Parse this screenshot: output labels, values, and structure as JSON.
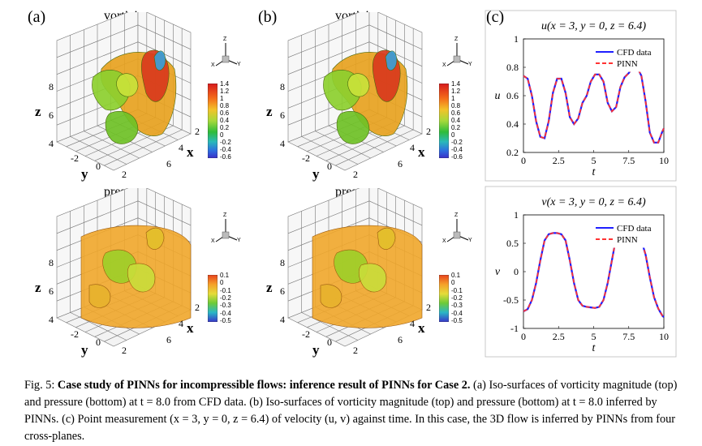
{
  "panels": {
    "a_label": "(a)",
    "b_label": "(b)",
    "c_label": "(c)",
    "vorticity_title": "vorticity",
    "pressure_title": "pressure"
  },
  "axes3d": {
    "z_label": "z",
    "y_label": "y",
    "x_label": "x",
    "z_ticks": [
      "8",
      "6",
      "4"
    ],
    "y_ticks": [
      "-2",
      "0",
      "2"
    ],
    "x_ticks": [
      "2",
      "4",
      "6"
    ]
  },
  "triad": {
    "z": "Z",
    "x": "X",
    "y": "Y"
  },
  "colorbars": {
    "vorticity_ticks": [
      "1.4",
      "1.2",
      "1",
      "0.8",
      "0.6",
      "0.4",
      "0.2",
      "0",
      "-0.2",
      "-0.4",
      "-0.6"
    ],
    "pressure_ticks": [
      "0.1",
      "0",
      "-0.1",
      "-0.2",
      "-0.3",
      "-0.4",
      "-0.5"
    ]
  },
  "chart_data": [
    {
      "type": "line",
      "title": "u(x = 3, y = 0, z = 6.4)",
      "xlabel": "t",
      "ylabel": "u",
      "xlim": [
        0,
        10
      ],
      "ylim": [
        0.2,
        1.0
      ],
      "xticks": [
        "0",
        "2.5",
        "5",
        "7.5",
        "10"
      ],
      "yticks": [
        "0.2",
        "0.4",
        "0.6",
        "0.8",
        "1"
      ],
      "legend": "top-right",
      "x": [
        0,
        0.3,
        0.6,
        0.9,
        1.2,
        1.5,
        1.8,
        2.1,
        2.4,
        2.7,
        3.0,
        3.3,
        3.6,
        3.9,
        4.2,
        4.5,
        4.8,
        5.1,
        5.4,
        5.7,
        6.0,
        6.3,
        6.6,
        6.9,
        7.2,
        7.5,
        7.8,
        8.1,
        8.4,
        8.7,
        9.0,
        9.3,
        9.6,
        9.9,
        10.0
      ],
      "series": [
        {
          "name": "CFD data",
          "color": "#1f1fff",
          "values": [
            0.74,
            0.72,
            0.6,
            0.42,
            0.31,
            0.3,
            0.42,
            0.62,
            0.72,
            0.72,
            0.62,
            0.45,
            0.4,
            0.44,
            0.55,
            0.6,
            0.7,
            0.75,
            0.75,
            0.7,
            0.55,
            0.49,
            0.52,
            0.66,
            0.73,
            0.76,
            0.8,
            0.8,
            0.74,
            0.56,
            0.34,
            0.27,
            0.27,
            0.35,
            0.37
          ]
        },
        {
          "name": "PINN",
          "color": "#ff3333",
          "values": [
            0.74,
            0.72,
            0.6,
            0.42,
            0.31,
            0.3,
            0.42,
            0.62,
            0.72,
            0.72,
            0.62,
            0.45,
            0.4,
            0.44,
            0.55,
            0.6,
            0.7,
            0.75,
            0.75,
            0.7,
            0.55,
            0.49,
            0.52,
            0.66,
            0.73,
            0.76,
            0.8,
            0.8,
            0.74,
            0.56,
            0.34,
            0.27,
            0.27,
            0.35,
            0.37
          ]
        }
      ]
    },
    {
      "type": "line",
      "title": "v(x = 3, y = 0, z = 6.4)",
      "xlabel": "t",
      "ylabel": "v",
      "xlim": [
        0,
        10
      ],
      "ylim": [
        -1,
        1
      ],
      "xticks": [
        "0",
        "2.5",
        "5",
        "7.5",
        "10"
      ],
      "yticks": [
        "-1",
        "-0.5",
        "0",
        "0.5",
        "1"
      ],
      "legend": "top-right",
      "x": [
        0,
        0.3,
        0.6,
        0.9,
        1.2,
        1.5,
        1.8,
        2.1,
        2.4,
        2.7,
        3.0,
        3.3,
        3.6,
        3.9,
        4.2,
        4.5,
        4.8,
        5.1,
        5.4,
        5.7,
        6.0,
        6.3,
        6.6,
        6.9,
        7.2,
        7.5,
        7.8,
        8.1,
        8.4,
        8.7,
        9.0,
        9.3,
        9.6,
        9.9,
        10.0
      ],
      "series": [
        {
          "name": "CFD data",
          "color": "#1f1fff",
          "values": [
            -0.7,
            -0.66,
            -0.5,
            -0.2,
            0.2,
            0.55,
            0.66,
            0.68,
            0.68,
            0.66,
            0.55,
            0.2,
            -0.2,
            -0.5,
            -0.6,
            -0.62,
            -0.63,
            -0.64,
            -0.62,
            -0.5,
            -0.2,
            0.2,
            0.6,
            0.66,
            0.65,
            0.63,
            0.63,
            0.6,
            0.55,
            0.3,
            -0.1,
            -0.45,
            -0.65,
            -0.78,
            -0.8
          ]
        },
        {
          "name": "PINN",
          "color": "#ff3333",
          "values": [
            -0.7,
            -0.66,
            -0.5,
            -0.2,
            0.2,
            0.55,
            0.66,
            0.68,
            0.68,
            0.66,
            0.55,
            0.2,
            -0.2,
            -0.5,
            -0.6,
            -0.62,
            -0.63,
            -0.64,
            -0.62,
            -0.5,
            -0.2,
            0.2,
            0.6,
            0.66,
            0.65,
            0.63,
            0.63,
            0.6,
            0.55,
            0.3,
            -0.1,
            -0.45,
            -0.65,
            -0.78,
            -0.8
          ]
        }
      ]
    }
  ],
  "caption": {
    "lead": "Fig. 5: ",
    "bold": "Case study of PINNs for incompressible flows: inference result of PINNs for Case 2.",
    "rest": " (a) Iso-surfaces of vorticity magnitude (top) and pressure (bottom) at t = 8.0 from CFD data. (b) Iso-surfaces of vorticity magnitude (top) and pressure (bottom) at t = 8.0 inferred by PINNs. (c) Point measurement (x = 3, y = 0, z = 6.4) of velocity (u, v) against time. In this case, the 3D flow is inferred by PINNs from four cross-planes."
  }
}
